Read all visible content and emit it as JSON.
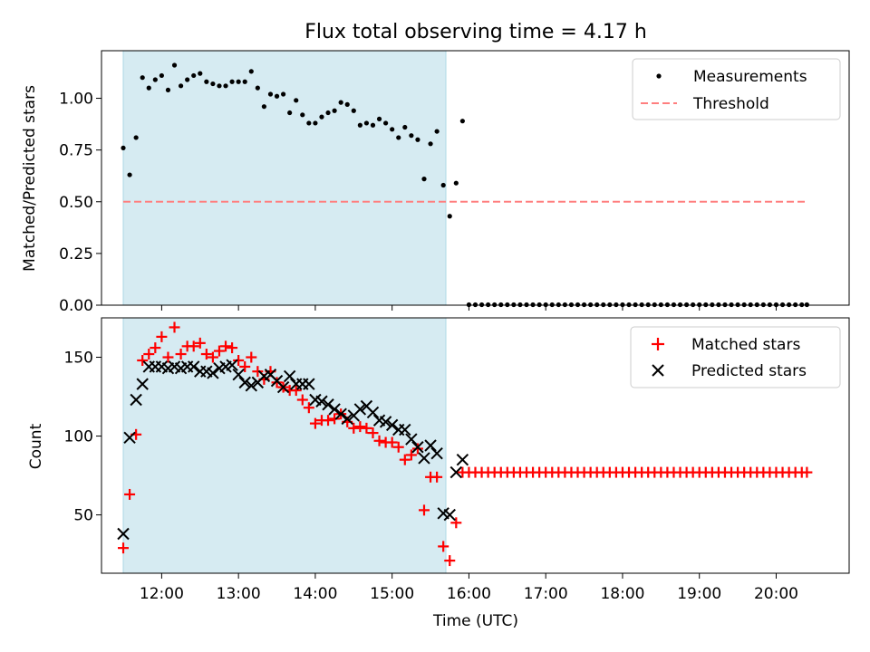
{
  "title": "Flux total observing time = 4.17 h",
  "colors": {
    "shade": "#add8e6",
    "measurements": "#000000",
    "threshold": "#ff7f7f",
    "matched": "#ff0000",
    "predicted": "#000000"
  },
  "chart_data": [
    {
      "type": "scatter",
      "panel": "top",
      "ylabel": "Matched/Predicted stars",
      "xlabel": "",
      "xlim": [
        "11:13",
        "20:57"
      ],
      "ylim": [
        0,
        1.23
      ],
      "yticks": [
        "0.00",
        "0.25",
        "0.50",
        "0.75",
        "1.00"
      ],
      "ytick_values": [
        0,
        0.25,
        0.5,
        0.75,
        1.0
      ],
      "shaded_span": [
        "11:30",
        "15:42"
      ],
      "legend": {
        "placement": "upper right",
        "entries": [
          "Measurements",
          "Threshold"
        ]
      },
      "threshold": {
        "name": "Threshold",
        "y": 0.5,
        "x_range": [
          "11:30",
          "20:24"
        ]
      },
      "series": [
        {
          "name": "Measurements",
          "x": [
            "11:30",
            "11:35",
            "11:40",
            "11:45",
            "11:50",
            "11:55",
            "12:00",
            "12:05",
            "12:10",
            "12:15",
            "12:20",
            "12:25",
            "12:30",
            "12:35",
            "12:40",
            "12:45",
            "12:50",
            "12:55",
            "13:00",
            "13:05",
            "13:10",
            "13:15",
            "13:20",
            "13:25",
            "13:30",
            "13:35",
            "13:40",
            "13:45",
            "13:50",
            "13:55",
            "14:00",
            "14:05",
            "14:10",
            "14:15",
            "14:20",
            "14:25",
            "14:30",
            "14:35",
            "14:40",
            "14:45",
            "14:50",
            "14:55",
            "15:00",
            "15:05",
            "15:10",
            "15:15",
            "15:20",
            "15:25",
            "15:30",
            "15:35",
            "15:40",
            "15:45",
            "15:50",
            "15:55",
            "16:00",
            "16:05",
            "16:10",
            "16:15",
            "16:20",
            "16:25",
            "16:30",
            "16:35",
            "16:40",
            "16:45",
            "16:50",
            "16:55",
            "17:00",
            "17:05",
            "17:10",
            "17:15",
            "17:20",
            "17:25",
            "17:30",
            "17:35",
            "17:40",
            "17:45",
            "17:50",
            "17:55",
            "18:00",
            "18:05",
            "18:10",
            "18:15",
            "18:20",
            "18:25",
            "18:30",
            "18:35",
            "18:40",
            "18:45",
            "18:50",
            "18:55",
            "19:00",
            "19:05",
            "19:10",
            "19:15",
            "19:20",
            "19:25",
            "19:30",
            "19:35",
            "19:40",
            "19:45",
            "19:50",
            "19:55",
            "20:00",
            "20:05",
            "20:10",
            "20:15",
            "20:20",
            "20:24"
          ],
          "y": [
            0.76,
            0.63,
            0.81,
            1.1,
            1.05,
            1.09,
            1.11,
            1.04,
            1.16,
            1.06,
            1.09,
            1.11,
            1.12,
            1.08,
            1.07,
            1.06,
            1.06,
            1.08,
            1.08,
            1.08,
            1.13,
            1.05,
            0.96,
            1.02,
            1.01,
            1.02,
            0.93,
            0.99,
            0.92,
            0.88,
            0.88,
            0.91,
            0.93,
            0.94,
            0.98,
            0.97,
            0.94,
            0.87,
            0.88,
            0.87,
            0.9,
            0.88,
            0.85,
            0.81,
            0.86,
            0.82,
            0.8,
            0.61,
            0.78,
            0.84,
            0.58,
            0.43,
            0.59,
            0.89,
            0,
            0,
            0,
            0,
            0,
            0,
            0,
            0,
            0,
            0,
            0,
            0,
            0,
            0,
            0,
            0,
            0,
            0,
            0,
            0,
            0,
            0,
            0,
            0,
            0,
            0,
            0,
            0,
            0,
            0,
            0,
            0,
            0,
            0,
            0,
            0,
            0,
            0,
            0,
            0,
            0,
            0,
            0,
            0,
            0,
            0,
            0,
            0,
            0,
            0,
            0,
            0,
            0,
            0
          ]
        }
      ]
    },
    {
      "type": "scatter",
      "panel": "bottom",
      "ylabel": "Count",
      "xlabel": "Time (UTC)",
      "xlim": [
        "11:13",
        "20:57"
      ],
      "ylim": [
        13,
        175
      ],
      "yticks": [
        "50",
        "100",
        "150"
      ],
      "ytick_values": [
        50,
        100,
        150
      ],
      "xticks": [
        "12:00",
        "13:00",
        "14:00",
        "15:00",
        "16:00",
        "17:00",
        "18:00",
        "19:00",
        "20:00"
      ],
      "shaded_span": [
        "11:30",
        "15:42"
      ],
      "legend": {
        "placement": "upper right",
        "entries": [
          "Matched stars",
          "Predicted stars"
        ]
      },
      "series": [
        {
          "name": "Matched stars",
          "marker": "+",
          "x": [
            "11:30",
            "11:35",
            "11:40",
            "11:45",
            "11:50",
            "11:55",
            "12:00",
            "12:05",
            "12:10",
            "12:15",
            "12:20",
            "12:25",
            "12:30",
            "12:35",
            "12:40",
            "12:45",
            "12:50",
            "12:55",
            "13:00",
            "13:05",
            "13:10",
            "13:15",
            "13:20",
            "13:25",
            "13:30",
            "13:35",
            "13:40",
            "13:45",
            "13:50",
            "13:55",
            "14:00",
            "14:05",
            "14:10",
            "14:15",
            "14:20",
            "14:25",
            "14:30",
            "14:35",
            "14:40",
            "14:45",
            "14:50",
            "14:55",
            "15:00",
            "15:05",
            "15:10",
            "15:15",
            "15:20",
            "15:25",
            "15:30",
            "15:35",
            "15:40",
            "15:45",
            "15:50",
            "15:55",
            "16:00",
            "16:05",
            "16:10",
            "16:15",
            "16:20",
            "16:25",
            "16:30",
            "16:35",
            "16:40",
            "16:45",
            "16:50",
            "16:55",
            "17:00",
            "17:05",
            "17:10",
            "17:15",
            "17:20",
            "17:25",
            "17:30",
            "17:35",
            "17:40",
            "17:45",
            "17:50",
            "17:55",
            "18:00",
            "18:05",
            "18:10",
            "18:15",
            "18:20",
            "18:25",
            "18:30",
            "18:35",
            "18:40",
            "18:45",
            "18:50",
            "18:55",
            "19:00",
            "19:05",
            "19:10",
            "19:15",
            "19:20",
            "19:25",
            "19:30",
            "19:35",
            "19:40",
            "19:45",
            "19:50",
            "19:55",
            "20:00",
            "20:05",
            "20:10",
            "20:15",
            "20:20",
            "20:24"
          ],
          "y": [
            29,
            63,
            101,
            148,
            152,
            156,
            163,
            150,
            169,
            152,
            157,
            157,
            159,
            152,
            150,
            154,
            157,
            156,
            148,
            144,
            150,
            141,
            136,
            141,
            134,
            131,
            129,
            129,
            123,
            118,
            108,
            110,
            110,
            111,
            114,
            109,
            105,
            106,
            105,
            102,
            97,
            96,
            96,
            93,
            85,
            88,
            92,
            53,
            74,
            74,
            30,
            21,
            45,
            77,
            77,
            77,
            77,
            77,
            77,
            77,
            77,
            77,
            77,
            77,
            77,
            77,
            77,
            77,
            77,
            77,
            77,
            77,
            77,
            77,
            77,
            77,
            77,
            77,
            77,
            77,
            77,
            77,
            77,
            77,
            77,
            77,
            77,
            77,
            77,
            77,
            77,
            77,
            77,
            77,
            77,
            77,
            77,
            77,
            77,
            77,
            77,
            77,
            77,
            77,
            77,
            77,
            77,
            77
          ]
        },
        {
          "name": "Predicted stars",
          "marker": "x",
          "x": [
            "11:30",
            "11:35",
            "11:40",
            "11:45",
            "11:50",
            "11:55",
            "12:00",
            "12:05",
            "12:10",
            "12:15",
            "12:20",
            "12:25",
            "12:30",
            "12:35",
            "12:40",
            "12:45",
            "12:50",
            "12:55",
            "13:00",
            "13:05",
            "13:10",
            "13:15",
            "13:20",
            "13:25",
            "13:30",
            "13:35",
            "13:40",
            "13:45",
            "13:50",
            "13:55",
            "14:00",
            "14:05",
            "14:10",
            "14:15",
            "14:20",
            "14:25",
            "14:30",
            "14:35",
            "14:40",
            "14:45",
            "14:50",
            "14:55",
            "15:00",
            "15:05",
            "15:10",
            "15:15",
            "15:20",
            "15:25",
            "15:30",
            "15:35",
            "15:40",
            "15:45",
            "15:50",
            "15:55"
          ],
          "y": [
            38,
            99,
            123,
            133,
            144,
            144,
            144,
            143,
            144,
            143,
            144,
            144,
            141,
            141,
            140,
            143,
            144,
            145,
            139,
            134,
            132,
            134,
            138,
            139,
            135,
            131,
            138,
            133,
            133,
            133,
            123,
            122,
            120,
            117,
            114,
            111,
            113,
            117,
            119,
            115,
            110,
            109,
            107,
            104,
            104,
            98,
            93,
            86,
            94,
            89,
            51,
            50,
            77,
            85
          ]
        }
      ]
    }
  ]
}
